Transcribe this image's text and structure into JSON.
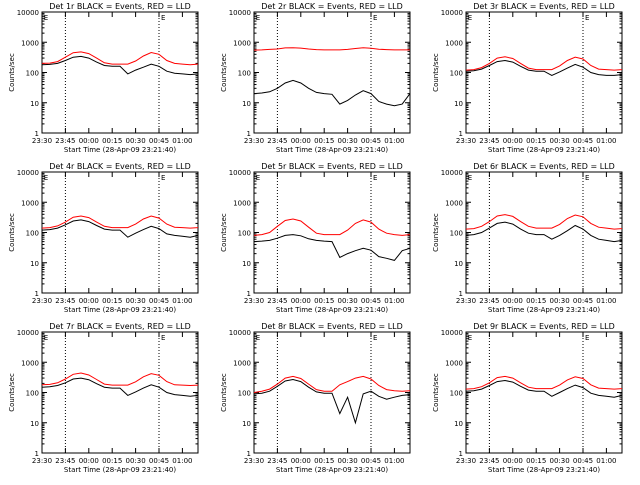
{
  "chart_data": {
    "type": "line",
    "x_tick_labels": [
      "23:30",
      "23:45",
      "00:00",
      "00:15",
      "00:30",
      "00:45",
      "01:00"
    ],
    "x_range_minutes": [
      0,
      100
    ],
    "y_tick_labels": [
      "1",
      "10",
      "100",
      "1000",
      "10000"
    ],
    "ylim": [
      1,
      10000
    ],
    "y_scale": "log",
    "ylabel": "Counts/sec",
    "xlabel": "Start Time (28-Apr-09 23:21:40)",
    "marker_label": "E",
    "vlines_minutes": [
      15,
      75
    ],
    "series_colors": {
      "events": "#000000",
      "lld": "#ff0000"
    },
    "panels": [
      {
        "title": "Det 1r BLACK = Events, RED = LLD",
        "x": [
          0,
          5,
          10,
          15,
          20,
          25,
          30,
          35,
          40,
          45,
          50,
          55,
          60,
          65,
          70,
          75,
          80,
          85,
          90,
          95,
          100
        ],
        "events": [
          180,
          185,
          200,
          250,
          320,
          340,
          300,
          220,
          170,
          160,
          160,
          90,
          120,
          150,
          190,
          160,
          110,
          95,
          90,
          85,
          90
        ],
        "lld": [
          200,
          205,
          230,
          320,
          450,
          480,
          420,
          300,
          210,
          190,
          190,
          190,
          240,
          350,
          460,
          400,
          250,
          200,
          190,
          180,
          190
        ]
      },
      {
        "title": "Det 2r BLACK = Events, RED = LLD",
        "x": [
          0,
          5,
          10,
          15,
          20,
          25,
          30,
          35,
          40,
          45,
          50,
          55,
          60,
          65,
          70,
          75,
          80,
          85,
          90,
          95,
          100
        ],
        "events": [
          20,
          21,
          23,
          30,
          45,
          55,
          45,
          30,
          22,
          20,
          19,
          9,
          12,
          18,
          25,
          20,
          11,
          9,
          8,
          9,
          20
        ],
        "lld": [
          550,
          560,
          580,
          600,
          650,
          660,
          640,
          600,
          570,
          560,
          560,
          560,
          580,
          620,
          660,
          630,
          590,
          570,
          560,
          560,
          560
        ]
      },
      {
        "title": "Det 3r BLACK = Events, RED = LLD",
        "x": [
          0,
          5,
          10,
          15,
          20,
          25,
          30,
          35,
          40,
          45,
          50,
          55,
          60,
          65,
          70,
          75,
          80,
          85,
          90,
          95,
          100
        ],
        "events": [
          110,
          115,
          130,
          170,
          230,
          250,
          220,
          160,
          120,
          110,
          110,
          80,
          105,
          140,
          185,
          150,
          100,
          85,
          80,
          80,
          85
        ],
        "lld": [
          120,
          125,
          145,
          200,
          300,
          330,
          290,
          200,
          140,
          125,
          125,
          125,
          165,
          250,
          320,
          280,
          170,
          130,
          125,
          120,
          125
        ]
      },
      {
        "title": "Det 4r BLACK = Events, RED = LLD",
        "x": [
          0,
          5,
          10,
          15,
          20,
          25,
          30,
          35,
          40,
          45,
          50,
          55,
          60,
          65,
          70,
          75,
          80,
          85,
          90,
          95,
          100
        ],
        "events": [
          120,
          125,
          140,
          180,
          240,
          260,
          230,
          170,
          130,
          120,
          120,
          70,
          95,
          125,
          160,
          135,
          90,
          80,
          75,
          70,
          80
        ],
        "lld": [
          140,
          145,
          165,
          220,
          320,
          350,
          310,
          220,
          160,
          145,
          145,
          145,
          190,
          280,
          350,
          300,
          190,
          150,
          145,
          140,
          145
        ]
      },
      {
        "title": "Det 5r BLACK = Events, RED = LLD",
        "x": [
          0,
          5,
          10,
          15,
          20,
          25,
          30,
          35,
          40,
          45,
          50,
          55,
          60,
          65,
          70,
          75,
          80,
          85,
          90,
          95,
          100
        ],
        "events": [
          50,
          52,
          55,
          65,
          80,
          85,
          78,
          62,
          55,
          52,
          50,
          15,
          20,
          25,
          30,
          26,
          16,
          14,
          12,
          25,
          30
        ],
        "lld": [
          80,
          85,
          100,
          160,
          250,
          280,
          240,
          150,
          95,
          85,
          85,
          85,
          120,
          200,
          260,
          220,
          130,
          95,
          85,
          80,
          85
        ]
      },
      {
        "title": "Det 6r BLACK = Events, RED = LLD",
        "x": [
          0,
          5,
          10,
          15,
          20,
          25,
          30,
          35,
          40,
          45,
          50,
          55,
          60,
          65,
          70,
          75,
          80,
          85,
          90,
          95,
          100
        ],
        "events": [
          80,
          85,
          100,
          140,
          200,
          220,
          190,
          130,
          95,
          85,
          85,
          60,
          80,
          115,
          170,
          130,
          80,
          60,
          55,
          50,
          55
        ],
        "lld": [
          130,
          135,
          160,
          230,
          350,
          390,
          340,
          230,
          160,
          140,
          140,
          140,
          185,
          290,
          380,
          330,
          200,
          150,
          140,
          130,
          135
        ]
      },
      {
        "title": "Det 7r BLACK = Events, RED = LLD",
        "x": [
          0,
          5,
          10,
          15,
          20,
          25,
          30,
          35,
          40,
          45,
          50,
          55,
          60,
          65,
          70,
          75,
          80,
          85,
          90,
          95,
          100
        ],
        "events": [
          150,
          155,
          170,
          210,
          280,
          300,
          265,
          195,
          150,
          140,
          140,
          80,
          105,
          140,
          180,
          150,
          100,
          85,
          80,
          75,
          80
        ],
        "lld": [
          180,
          185,
          210,
          280,
          400,
          440,
          380,
          270,
          190,
          175,
          175,
          175,
          225,
          330,
          420,
          370,
          230,
          180,
          175,
          170,
          175
        ]
      },
      {
        "title": "Det 8r BLACK = Events, RED = LLD",
        "x": [
          0,
          5,
          10,
          15,
          20,
          25,
          30,
          35,
          40,
          45,
          50,
          55,
          60,
          65,
          70,
          75,
          80,
          85,
          90,
          95,
          100
        ],
        "events": [
          90,
          95,
          110,
          160,
          240,
          270,
          230,
          150,
          105,
          95,
          95,
          20,
          70,
          10,
          90,
          110,
          75,
          60,
          70,
          80,
          85
        ],
        "lld": [
          100,
          110,
          130,
          190,
          300,
          340,
          290,
          190,
          125,
          110,
          110,
          180,
          230,
          300,
          340,
          280,
          170,
          125,
          115,
          110,
          115
        ]
      },
      {
        "title": "Det 9r BLACK = Events, RED = LLD",
        "x": [
          0,
          5,
          10,
          15,
          20,
          25,
          30,
          35,
          40,
          45,
          50,
          55,
          60,
          65,
          70,
          75,
          80,
          85,
          90,
          95,
          100
        ],
        "events": [
          110,
          115,
          130,
          170,
          230,
          250,
          220,
          160,
          120,
          110,
          110,
          75,
          100,
          135,
          175,
          145,
          95,
          80,
          75,
          70,
          80
        ],
        "lld": [
          130,
          135,
          155,
          210,
          310,
          340,
          300,
          210,
          150,
          135,
          135,
          135,
          175,
          260,
          330,
          290,
          180,
          140,
          135,
          130,
          135
        ]
      }
    ]
  }
}
